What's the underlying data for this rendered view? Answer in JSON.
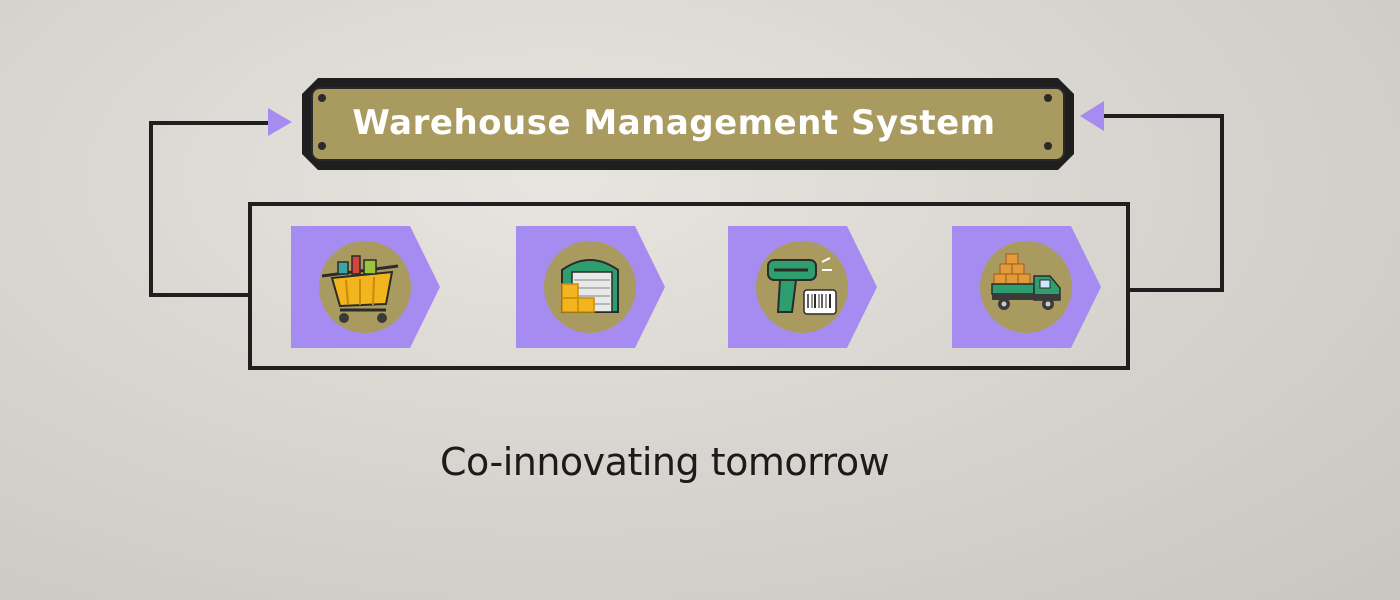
{
  "title": "Warehouse Management System",
  "tagline": "Co-innovating tomorrow",
  "colors": {
    "banner_fill": "#a99b5f",
    "banner_border": "#1f1f1f",
    "step_fill": "#a68cf0",
    "icon_circle": "#a99b5f",
    "arrow": "#a68cf0",
    "line": "#1f1f1f"
  },
  "steps": [
    {
      "icon": "shopping-cart-icon"
    },
    {
      "icon": "warehouse-boxes-icon"
    },
    {
      "icon": "barcode-scanner-icon"
    },
    {
      "icon": "delivery-truck-icon"
    }
  ]
}
